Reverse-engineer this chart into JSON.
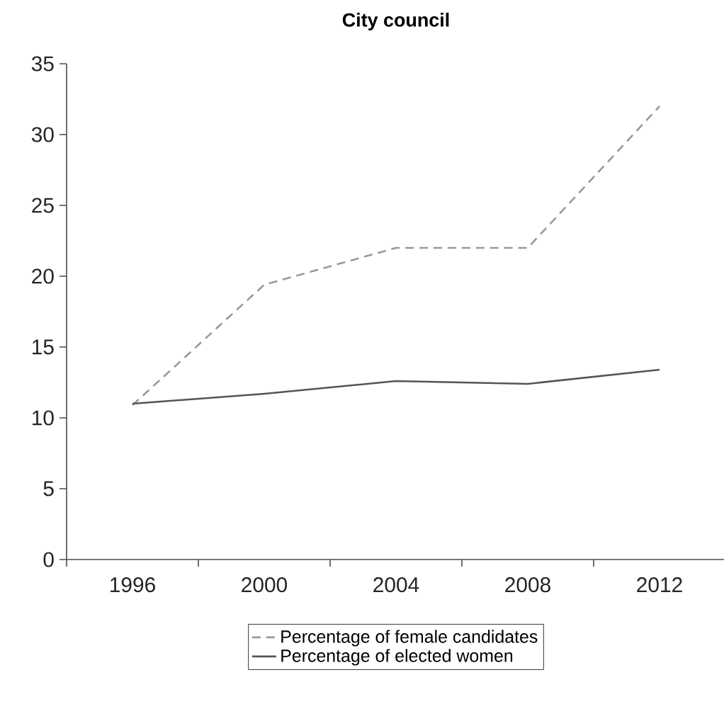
{
  "chart_data": {
    "type": "line",
    "title": "City council",
    "categories": [
      "1996",
      "2000",
      "2004",
      "2008",
      "2012"
    ],
    "series": [
      {
        "name": "Percentage of female candidates",
        "color": "#999999",
        "line_style": "dashed",
        "values": [
          10.9,
          19.4,
          22.0,
          22.0,
          32.0
        ]
      },
      {
        "name": "Percentage of elected women",
        "color": "#555555",
        "line_style": "solid",
        "values": [
          11.0,
          11.7,
          12.6,
          12.4,
          13.4
        ]
      }
    ],
    "ylim": [
      0,
      35
    ],
    "yticks": [
      0,
      5,
      10,
      15,
      20,
      25,
      30,
      35
    ],
    "legend": "bottom",
    "marker": "none",
    "grid": false
  }
}
